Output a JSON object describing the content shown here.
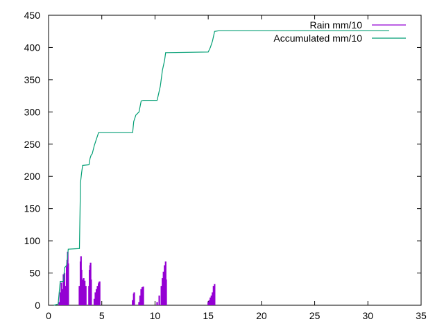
{
  "chart_data": {
    "type": "line",
    "title": "",
    "xlabel": "",
    "ylabel": "",
    "xlim": [
      0,
      35
    ],
    "ylim": [
      0,
      450
    ],
    "x_ticks": [
      0,
      5,
      10,
      15,
      20,
      25,
      30,
      35
    ],
    "y_ticks": [
      0,
      50,
      100,
      150,
      200,
      250,
      300,
      350,
      400,
      450
    ],
    "grid": false,
    "legend_position": "top-right",
    "series": [
      {
        "name": "Rain mm/10",
        "style": "impulses",
        "color": "#9400d3",
        "points": [
          [
            1.0,
            5
          ],
          [
            1.1,
            20
          ],
          [
            1.2,
            35
          ],
          [
            1.3,
            25
          ],
          [
            1.4,
            48
          ],
          [
            1.5,
            50
          ],
          [
            1.6,
            30
          ],
          [
            1.7,
            60
          ],
          [
            1.75,
            70
          ],
          [
            1.8,
            83
          ],
          [
            1.85,
            65
          ],
          [
            2.9,
            30
          ],
          [
            3.0,
            68
          ],
          [
            3.05,
            76
          ],
          [
            3.1,
            55
          ],
          [
            3.2,
            40
          ],
          [
            3.3,
            42
          ],
          [
            3.4,
            38
          ],
          [
            3.5,
            30
          ],
          [
            3.8,
            30
          ],
          [
            3.85,
            55
          ],
          [
            3.9,
            62
          ],
          [
            3.95,
            66
          ],
          [
            4.0,
            40
          ],
          [
            4.3,
            10
          ],
          [
            4.4,
            20
          ],
          [
            4.5,
            25
          ],
          [
            4.6,
            30
          ],
          [
            4.7,
            34
          ],
          [
            4.75,
            36
          ],
          [
            4.8,
            37
          ],
          [
            7.9,
            8
          ],
          [
            8.0,
            18
          ],
          [
            8.05,
            20
          ],
          [
            8.5,
            5
          ],
          [
            8.6,
            15
          ],
          [
            8.7,
            25
          ],
          [
            8.8,
            28
          ],
          [
            8.9,
            29
          ],
          [
            10.2,
            5
          ],
          [
            10.4,
            15
          ],
          [
            10.6,
            30
          ],
          [
            10.7,
            42
          ],
          [
            10.8,
            52
          ],
          [
            10.9,
            62
          ],
          [
            11.0,
            68
          ],
          [
            11.05,
            40
          ],
          [
            15.0,
            5
          ],
          [
            15.1,
            8
          ],
          [
            15.2,
            12
          ],
          [
            15.3,
            15
          ],
          [
            15.4,
            20
          ],
          [
            15.5,
            30
          ],
          [
            15.6,
            33
          ]
        ]
      },
      {
        "name": "Accumulated mm/10",
        "style": "lines",
        "color": "#009e73",
        "points": [
          [
            0.5,
            0
          ],
          [
            0.9,
            2
          ],
          [
            1.0,
            20
          ],
          [
            1.1,
            37
          ],
          [
            1.4,
            37
          ],
          [
            1.5,
            58
          ],
          [
            1.7,
            62
          ],
          [
            1.85,
            87
          ],
          [
            2.9,
            88
          ],
          [
            3.0,
            190
          ],
          [
            3.1,
            205
          ],
          [
            3.2,
            217
          ],
          [
            3.8,
            218
          ],
          [
            3.9,
            228
          ],
          [
            4.0,
            233
          ],
          [
            4.1,
            235
          ],
          [
            4.3,
            248
          ],
          [
            4.5,
            258
          ],
          [
            4.7,
            268
          ],
          [
            7.9,
            268
          ],
          [
            8.0,
            285
          ],
          [
            8.2,
            295
          ],
          [
            8.5,
            300
          ],
          [
            8.7,
            317
          ],
          [
            8.9,
            318
          ],
          [
            10.2,
            318
          ],
          [
            10.5,
            340
          ],
          [
            10.7,
            365
          ],
          [
            10.9,
            380
          ],
          [
            11.0,
            392
          ],
          [
            15.0,
            393
          ],
          [
            15.2,
            400
          ],
          [
            15.4,
            410
          ],
          [
            15.6,
            425
          ],
          [
            16.0,
            426
          ],
          [
            32.0,
            426
          ]
        ]
      }
    ]
  }
}
